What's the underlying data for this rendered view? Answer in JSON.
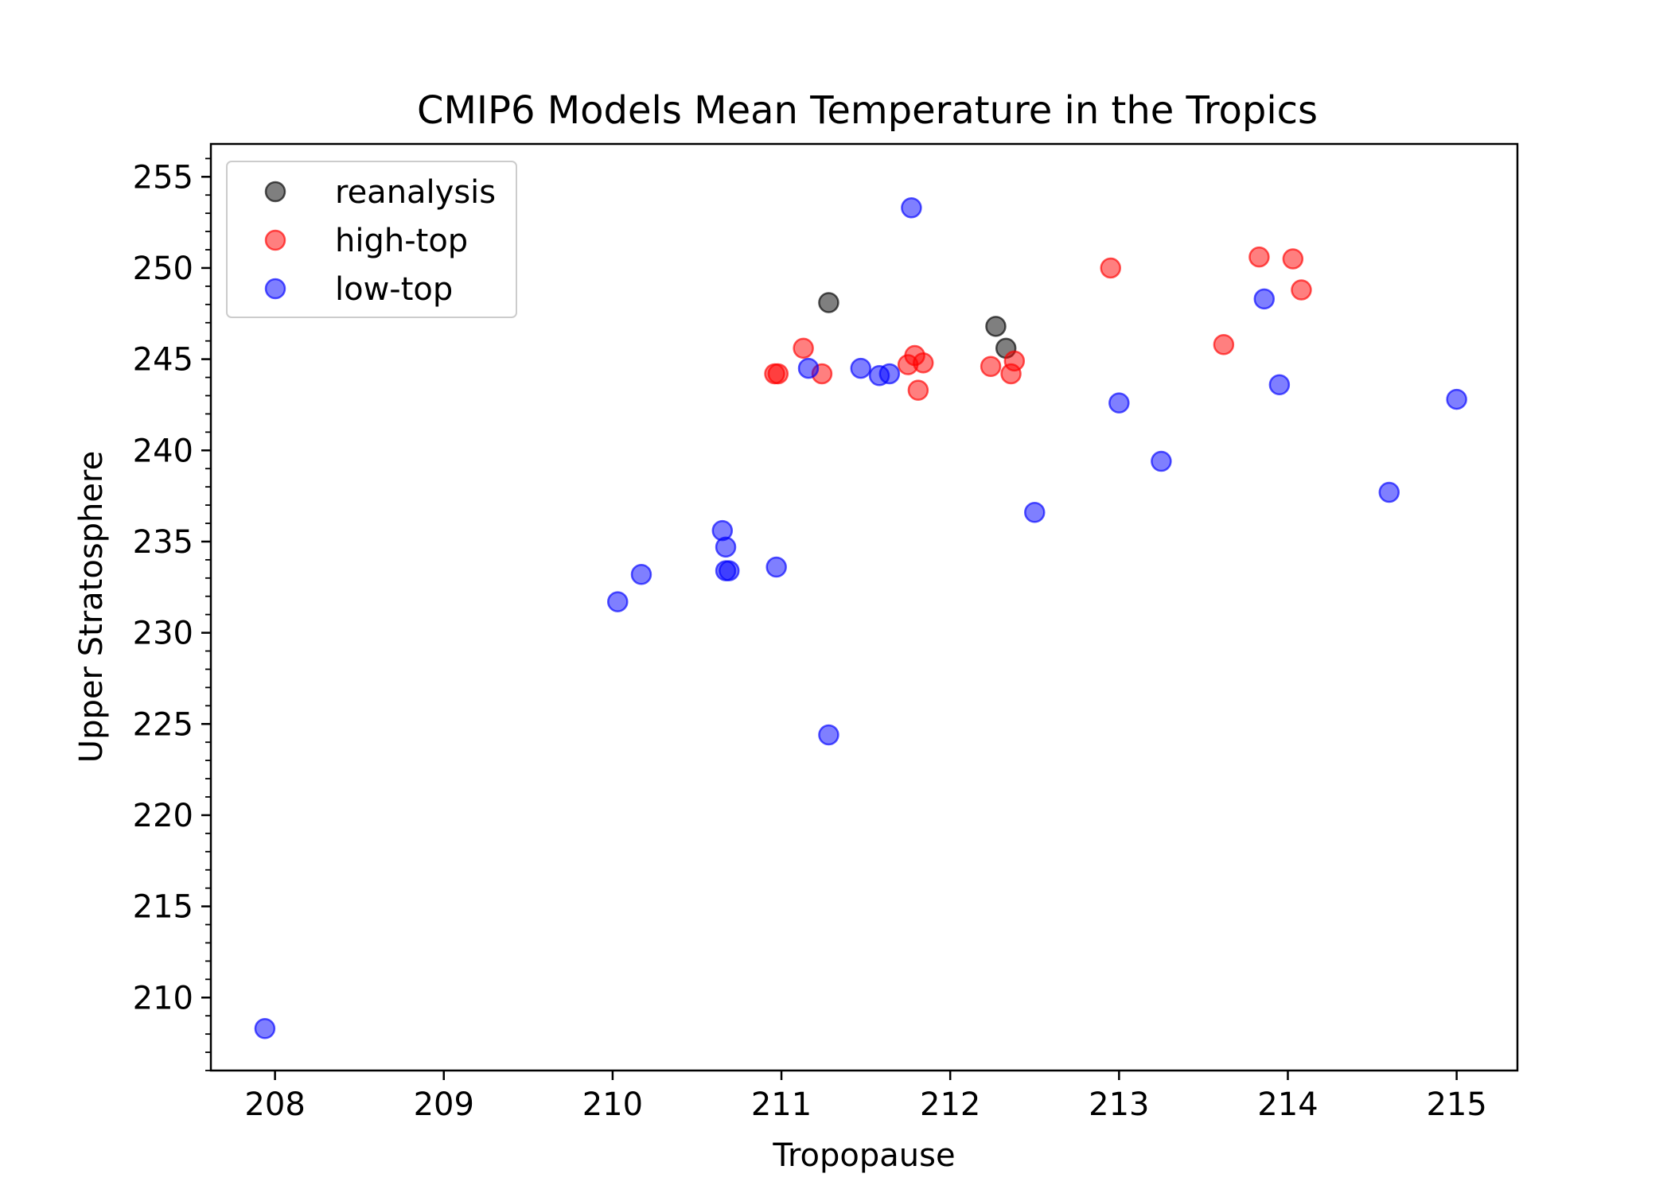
{
  "chart_data": {
    "type": "scatter",
    "title": "CMIP6 Models Mean Temperature in the Tropics",
    "xlabel": "Tropopause",
    "ylabel": "Upper Stratosphere",
    "xlim": [
      207.62,
      215.36
    ],
    "ylim": [
      206.0,
      256.8
    ],
    "xticks": [
      208,
      209,
      210,
      211,
      212,
      213,
      214,
      215
    ],
    "yticks": [
      210,
      215,
      220,
      225,
      230,
      235,
      240,
      245,
      250,
      255
    ],
    "grid": false,
    "legend_position": "top-left",
    "series": [
      {
        "name": "reanalysis",
        "color": "#000000",
        "alpha": 0.5,
        "points": [
          [
            211.28,
            248.1
          ],
          [
            212.27,
            246.8
          ],
          [
            212.33,
            245.6
          ]
        ]
      },
      {
        "name": "high-top",
        "color": "#ff0000",
        "alpha": 0.5,
        "points": [
          [
            210.96,
            244.2
          ],
          [
            210.98,
            244.2
          ],
          [
            211.13,
            245.6
          ],
          [
            211.24,
            244.2
          ],
          [
            211.75,
            244.7
          ],
          [
            211.79,
            245.2
          ],
          [
            211.81,
            243.3
          ],
          [
            211.84,
            244.8
          ],
          [
            212.24,
            244.6
          ],
          [
            212.36,
            244.2
          ],
          [
            212.38,
            244.9
          ],
          [
            212.95,
            250.0
          ],
          [
            213.62,
            245.8
          ],
          [
            213.83,
            250.6
          ],
          [
            214.03,
            250.5
          ],
          [
            214.08,
            248.8
          ]
        ]
      },
      {
        "name": "low-top",
        "color": "#0000ff",
        "alpha": 0.5,
        "points": [
          [
            207.94,
            208.3
          ],
          [
            210.03,
            231.7
          ],
          [
            210.17,
            233.2
          ],
          [
            210.65,
            235.6
          ],
          [
            210.67,
            234.7
          ],
          [
            210.67,
            233.4
          ],
          [
            210.69,
            233.4
          ],
          [
            210.97,
            233.6
          ],
          [
            211.16,
            244.5
          ],
          [
            211.28,
            224.4
          ],
          [
            211.47,
            244.5
          ],
          [
            211.58,
            244.1
          ],
          [
            211.64,
            244.2
          ],
          [
            211.77,
            253.3
          ],
          [
            212.5,
            236.6
          ],
          [
            213.0,
            242.6
          ],
          [
            213.25,
            239.4
          ],
          [
            213.86,
            248.3
          ],
          [
            213.95,
            243.6
          ],
          [
            214.6,
            237.7
          ],
          [
            215.0,
            242.8
          ]
        ]
      }
    ]
  }
}
